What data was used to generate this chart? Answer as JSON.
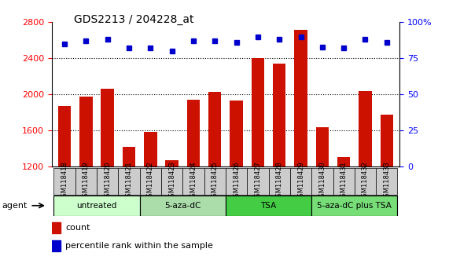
{
  "title": "GDS2213 / 204228_at",
  "samples": [
    "GSM118418",
    "GSM118419",
    "GSM118420",
    "GSM118421",
    "GSM118422",
    "GSM118423",
    "GSM118424",
    "GSM118425",
    "GSM118426",
    "GSM118427",
    "GSM118428",
    "GSM118429",
    "GSM118430",
    "GSM118431",
    "GSM118432",
    "GSM118433"
  ],
  "counts": [
    1870,
    1980,
    2060,
    1420,
    1590,
    1270,
    1940,
    2030,
    1930,
    2400,
    2340,
    2720,
    1640,
    1310,
    2040,
    1780
  ],
  "percentiles": [
    85,
    87,
    88,
    82,
    82,
    80,
    87,
    87,
    86,
    90,
    88,
    90,
    83,
    82,
    88,
    86
  ],
  "groups": [
    {
      "label": "untreated",
      "start": 0,
      "end": 4,
      "color": "#ccffcc"
    },
    {
      "label": "5-aza-dC",
      "start": 4,
      "end": 8,
      "color": "#aaddaa"
    },
    {
      "label": "TSA",
      "start": 8,
      "end": 12,
      "color": "#44cc44"
    },
    {
      "label": "5-aza-dC plus TSA",
      "start": 12,
      "end": 16,
      "color": "#77dd77"
    }
  ],
  "bar_color": "#cc1100",
  "dot_color": "#0000cc",
  "ylim_left": [
    1200,
    2800
  ],
  "ylim_right": [
    0,
    100
  ],
  "yticks_left": [
    1200,
    1600,
    2000,
    2400,
    2800
  ],
  "yticks_right": [
    0,
    25,
    50,
    75,
    100
  ],
  "grid_values": [
    1600,
    2000,
    2400
  ],
  "agent_label": "agent",
  "legend_count": "count",
  "legend_percentile": "percentile rank within the sample"
}
